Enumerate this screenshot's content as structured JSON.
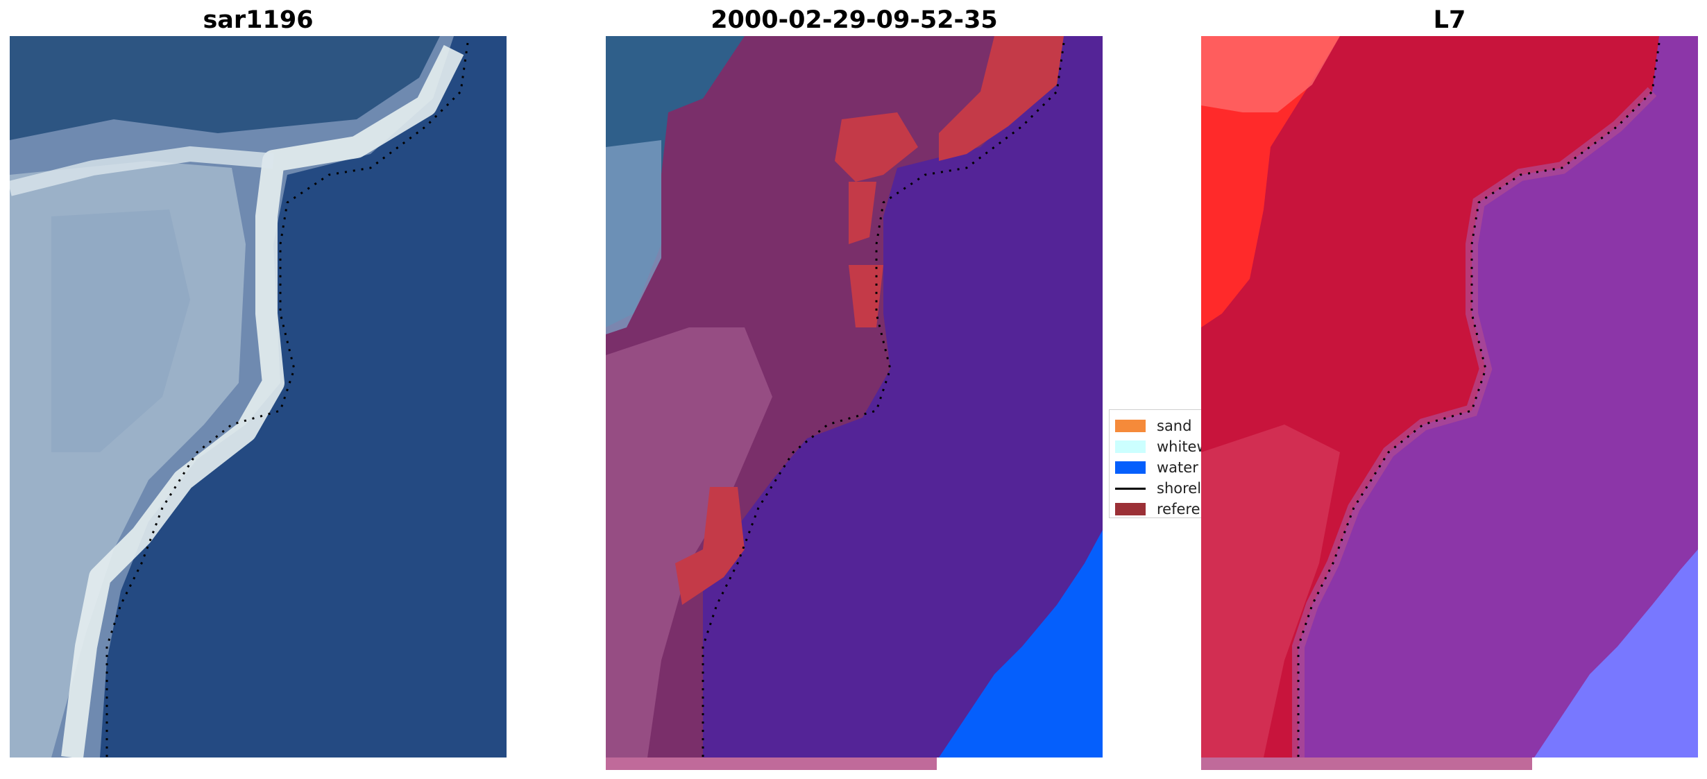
{
  "panels": [
    {
      "title": "sar1196"
    },
    {
      "title": "2000-02-29-09-52-35"
    },
    {
      "title": "L7"
    }
  ],
  "legend": {
    "items": [
      {
        "label": "sand",
        "color": "#f58a3a",
        "kind": "patch"
      },
      {
        "label": "whitew",
        "color": "#ccffff",
        "kind": "patch"
      },
      {
        "label": "water",
        "color": "#055ffc",
        "kind": "patch"
      },
      {
        "label": "shorel",
        "color": "#000000",
        "kind": "line"
      },
      {
        "label": "referen",
        "color": "#9b3036",
        "kind": "patch"
      }
    ]
  },
  "colors": {
    "rgb_water": "#244a82",
    "rgb_land": "#9db0c8",
    "rgb_whitewater": "#eef4f4",
    "class_land": "#7a2f6a",
    "class_water": "#542497",
    "class_water_bright": "#055ffc",
    "class_reference": "#c43a48",
    "class_land_unclassified": "#2f5f8a",
    "mndwi_land": "#c8143c",
    "mndwi_land_high": "#ff1010",
    "mndwi_water": "#8c36a8",
    "mndwi_water_bright": "#7878ff",
    "shoreline": "#000000"
  }
}
